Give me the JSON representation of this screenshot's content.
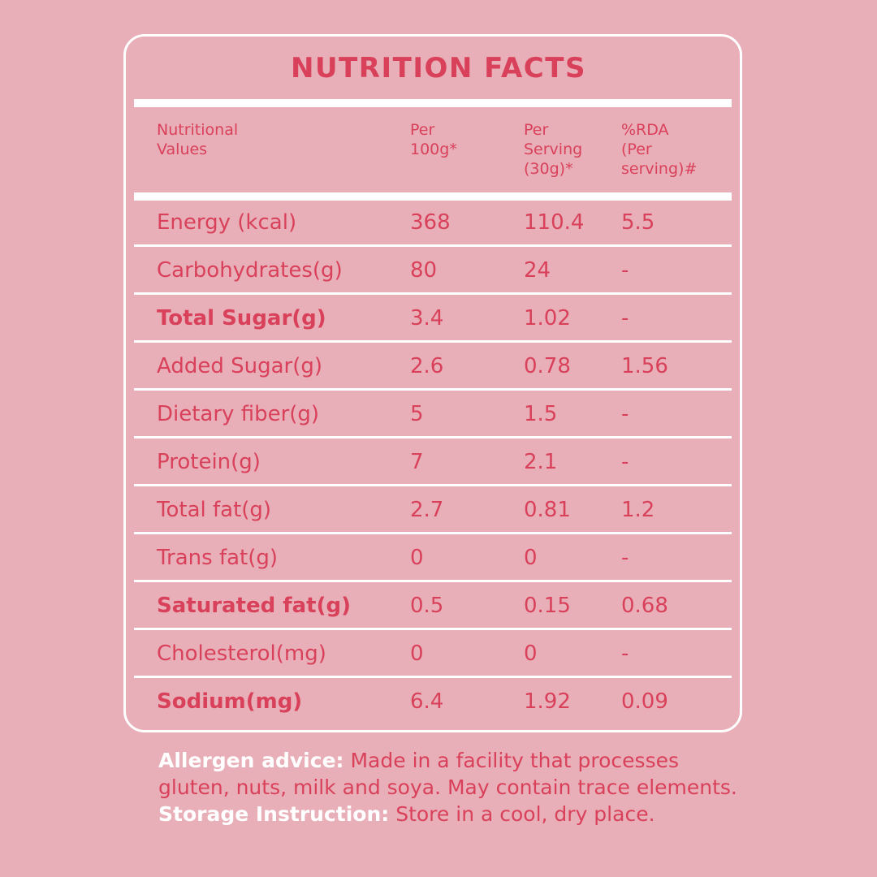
{
  "title": "NUTRITION FACTS",
  "headers": [
    "Nutritional\nValues",
    "Per\n100g*",
    "Per\nServing\n(30g)*",
    "%RDA\n(Per\nserving)#"
  ],
  "rows": [
    {
      "name": "Energy (kcal)",
      "per100": "368",
      "serving": "110.4",
      "rda": "5.5",
      "bold": false
    },
    {
      "name": "Carbohydrates(g)",
      "per100": "80",
      "serving": "24",
      "rda": "-",
      "bold": false
    },
    {
      "name": "Total Sugar(g)",
      "per100": "3.4",
      "serving": "1.02",
      "rda": "-",
      "bold": true
    },
    {
      "name": "Added Sugar(g)",
      "per100": "2.6",
      "serving": "0.78",
      "rda": "1.56",
      "bold": false
    },
    {
      "name": "Dietary fiber(g)",
      "per100": "5",
      "serving": "1.5",
      "rda": "-",
      "bold": false
    },
    {
      "name": "Protein(g)",
      "per100": "7",
      "serving": "2.1",
      "rda": "-",
      "bold": false
    },
    {
      "name": "Total fat(g)",
      "per100": "2.7",
      "serving": "0.81",
      "rda": "1.2",
      "bold": false
    },
    {
      "name": "Trans fat(g)",
      "per100": "0",
      "serving": "0",
      "rda": "-",
      "bold": false
    },
    {
      "name": "Saturated fat(g)",
      "per100": "0.5",
      "serving": "0.15",
      "rda": "0.68",
      "bold": true
    },
    {
      "name": "Cholesterol(mg)",
      "per100": "0",
      "serving": "0",
      "rda": "-",
      "bold": false
    },
    {
      "name": "Sodium(mg)",
      "per100": "6.4",
      "serving": "1.92",
      "rda": "0.09",
      "bold": true
    }
  ],
  "allergen": {
    "label": "Allergen advice:",
    "text": "Made in a facility that processes gluten, nuts, milk and soya. May contain trace elements."
  },
  "storage": {
    "label": "Storage Instruction:",
    "text": "Store in a cool, dry place."
  },
  "colors": {
    "background": "#e8afb8",
    "accent": "#d9415b",
    "white": "#ffffff"
  }
}
